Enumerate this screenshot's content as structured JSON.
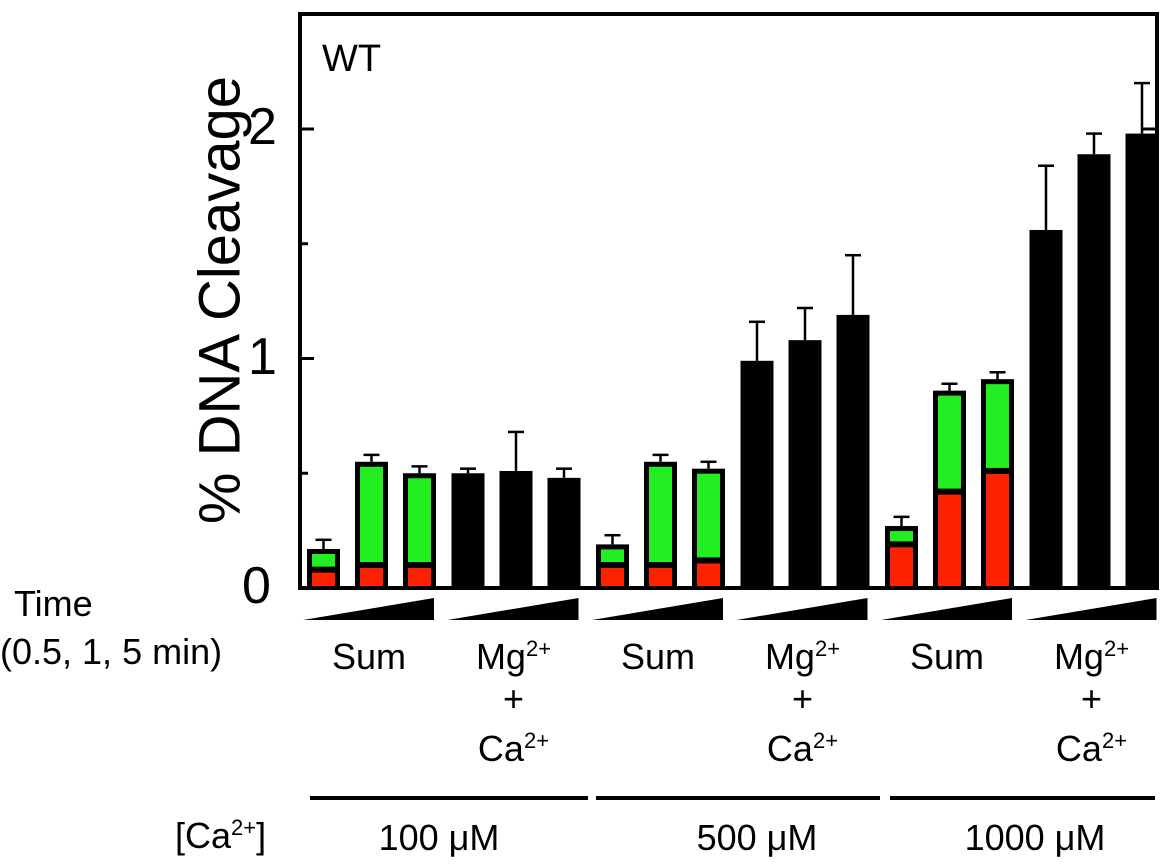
{
  "panel_label": "WT",
  "ylabel": "% DNA Cleavage",
  "time_label": [
    "Time",
    "(0.5, 1, 5 min)"
  ],
  "ca_label": "[Ca",
  "ca_label_sup": "2+",
  "ca_label_end": "]",
  "group_labels": {
    "sum": "Sum",
    "mgca_line1": "Mg",
    "mgca_sup": "2+",
    "mgca_plus": "+",
    "mgca_line3": "Ca",
    "mgca_sup2": "2+"
  },
  "concentrations": [
    "100 μM",
    "500 μM",
    "1000 μM"
  ],
  "colors": {
    "green": "#22ee22",
    "red": "#ff2200",
    "black": "#000000"
  },
  "chart_data": {
    "type": "bar",
    "title": "WT",
    "ylabel": "% DNA Cleavage",
    "ylim": [
      0,
      2.5
    ],
    "yticks": [
      0,
      1,
      2
    ],
    "x_time_points": [
      "0.5",
      "1",
      "5"
    ],
    "groups": [
      {
        "ca": "100 μM",
        "kind": "Sum",
        "red": [
          0.08,
          0.1,
          0.1
        ],
        "green": [
          0.09,
          0.45,
          0.4
        ],
        "total": [
          0.17,
          0.55,
          0.5
        ],
        "err": [
          0.04,
          0.03,
          0.03
        ]
      },
      {
        "ca": "100 μM",
        "kind": "Mg2+ + Ca2+",
        "total": [
          0.5,
          0.51,
          0.48
        ],
        "err": [
          0.02,
          0.17,
          0.04
        ]
      },
      {
        "ca": "500 μM",
        "kind": "Sum",
        "red": [
          0.1,
          0.1,
          0.12
        ],
        "green": [
          0.09,
          0.45,
          0.4
        ],
        "total": [
          0.19,
          0.55,
          0.52
        ],
        "err": [
          0.04,
          0.03,
          0.03
        ]
      },
      {
        "ca": "500 μM",
        "kind": "Mg2+ + Ca2+",
        "total": [
          0.99,
          1.08,
          1.19
        ],
        "err": [
          0.17,
          0.14,
          0.26
        ]
      },
      {
        "ca": "1000 μM",
        "kind": "Sum",
        "red": [
          0.19,
          0.42,
          0.51
        ],
        "green": [
          0.08,
          0.44,
          0.4
        ],
        "total": [
          0.27,
          0.86,
          0.91
        ],
        "err": [
          0.04,
          0.03,
          0.03
        ]
      },
      {
        "ca": "1000 μM",
        "kind": "Mg2+ + Ca2+",
        "total": [
          1.56,
          1.89,
          1.98
        ],
        "err": [
          0.28,
          0.09,
          0.22
        ]
      }
    ]
  }
}
